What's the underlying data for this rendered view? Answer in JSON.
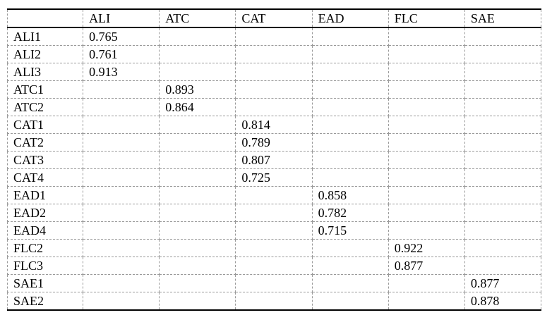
{
  "table": {
    "name": "outer-loadings-matrix",
    "columns": [
      "",
      "ALI",
      "ATC",
      "CAT",
      "EAD",
      "FLC",
      "SAE"
    ],
    "rows": [
      {
        "label": "ALI1",
        "values": [
          "0.765",
          "",
          "",
          "",
          "",
          ""
        ]
      },
      {
        "label": "ALI2",
        "values": [
          "0.761",
          "",
          "",
          "",
          "",
          ""
        ]
      },
      {
        "label": "ALI3",
        "values": [
          "0.913",
          "",
          "",
          "",
          "",
          ""
        ]
      },
      {
        "label": "ATC1",
        "values": [
          "",
          "0.893",
          "",
          "",
          "",
          ""
        ]
      },
      {
        "label": "ATC2",
        "values": [
          "",
          "0.864",
          "",
          "",
          "",
          ""
        ]
      },
      {
        "label": "CAT1",
        "values": [
          "",
          "",
          "0.814",
          "",
          "",
          ""
        ]
      },
      {
        "label": "CAT2",
        "values": [
          "",
          "",
          "0.789",
          "",
          "",
          ""
        ]
      },
      {
        "label": "CAT3",
        "values": [
          "",
          "",
          "0.807",
          "",
          "",
          ""
        ]
      },
      {
        "label": "CAT4",
        "values": [
          "",
          "",
          "0.725",
          "",
          "",
          ""
        ]
      },
      {
        "label": "EAD1",
        "values": [
          "",
          "",
          "",
          "0.858",
          "",
          ""
        ]
      },
      {
        "label": "EAD2",
        "values": [
          "",
          "",
          "",
          "0.782",
          "",
          ""
        ]
      },
      {
        "label": "EAD4",
        "values": [
          "",
          "",
          "",
          "0.715",
          "",
          ""
        ]
      },
      {
        "label": "FLC2",
        "values": [
          "",
          "",
          "",
          "",
          "0.922",
          ""
        ]
      },
      {
        "label": "FLC3",
        "values": [
          "",
          "",
          "",
          "",
          "0.877",
          ""
        ]
      },
      {
        "label": "SAE1",
        "values": [
          "",
          "",
          "",
          "",
          "",
          "0.877"
        ]
      },
      {
        "label": "SAE2",
        "values": [
          "",
          "",
          "",
          "",
          "",
          "0.878"
        ]
      }
    ]
  },
  "colors": {
    "grid_dashed": "#9a9a9a",
    "rule_solid": "#000000",
    "text": "#000000",
    "background": "#ffffff"
  }
}
